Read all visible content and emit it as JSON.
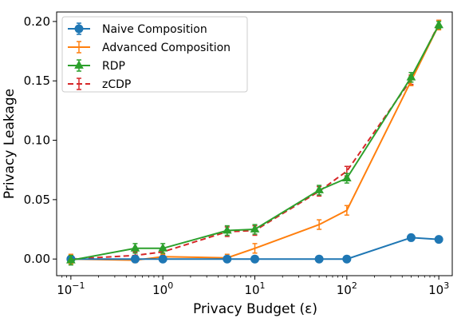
{
  "chart_data": {
    "type": "line",
    "xlabel": "Privacy Budget (ε)",
    "ylabel": "Privacy Leakage",
    "xscale": "log",
    "xlim": [
      0.07,
      1400
    ],
    "ylim": [
      -0.014,
      0.208
    ],
    "x_ticks": [
      {
        "value": 0.1,
        "base": "10",
        "exp": "−1"
      },
      {
        "value": 1,
        "base": "10",
        "exp": "0"
      },
      {
        "value": 10,
        "base": "10",
        "exp": "1"
      },
      {
        "value": 100,
        "base": "10",
        "exp": "2"
      },
      {
        "value": 1000,
        "base": "10",
        "exp": "3"
      }
    ],
    "y_ticks": [
      {
        "value": 0.0,
        "label": "0.00"
      },
      {
        "value": 0.05,
        "label": "0.05"
      },
      {
        "value": 0.1,
        "label": "0.10"
      },
      {
        "value": 0.15,
        "label": "0.15"
      },
      {
        "value": 0.2,
        "label": "0.20"
      }
    ],
    "grid": false,
    "legend_position": "top-left",
    "x": [
      0.1,
      0.5,
      1,
      5,
      10,
      50,
      100,
      500,
      1000
    ],
    "series": [
      {
        "name": "Naive Composition",
        "color": "#1f77b4",
        "marker": "circle",
        "dash": false,
        "values": [
          0.0,
          0.0,
          0.0,
          0.0,
          0.0,
          0.0,
          0.0,
          0.018,
          0.0165
        ],
        "errors": [
          0.001,
          0.001,
          0.001,
          0.001,
          0.001,
          0.001,
          0.001,
          0.001,
          0.001
        ]
      },
      {
        "name": "Advanced Composition",
        "color": "#ff7f0e",
        "marker": "none",
        "dash": false,
        "values": [
          0.0,
          -0.001,
          0.002,
          0.001,
          0.009,
          0.029,
          0.041,
          0.15,
          0.197
        ],
        "errors": [
          0.004,
          0.002,
          0.002,
          0.003,
          0.004,
          0.004,
          0.004,
          0.004,
          0.004
        ]
      },
      {
        "name": "RDP",
        "color": "#2ca02c",
        "marker": "triangle",
        "dash": false,
        "values": [
          -0.001,
          0.009,
          0.009,
          0.024,
          0.025,
          0.058,
          0.068,
          0.153,
          0.197
        ],
        "errors": [
          0.004,
          0.004,
          0.004,
          0.004,
          0.004,
          0.004,
          0.004,
          0.004,
          0.003
        ]
      },
      {
        "name": "zCDP",
        "color": "#d62728",
        "marker": "none",
        "dash": true,
        "values": [
          0.0,
          0.003,
          0.006,
          0.023,
          0.024,
          0.057,
          0.074,
          0.151,
          0.198
        ],
        "errors": [
          0.003,
          0.003,
          0.003,
          0.004,
          0.004,
          0.004,
          0.004,
          0.004,
          0.003
        ]
      }
    ]
  }
}
